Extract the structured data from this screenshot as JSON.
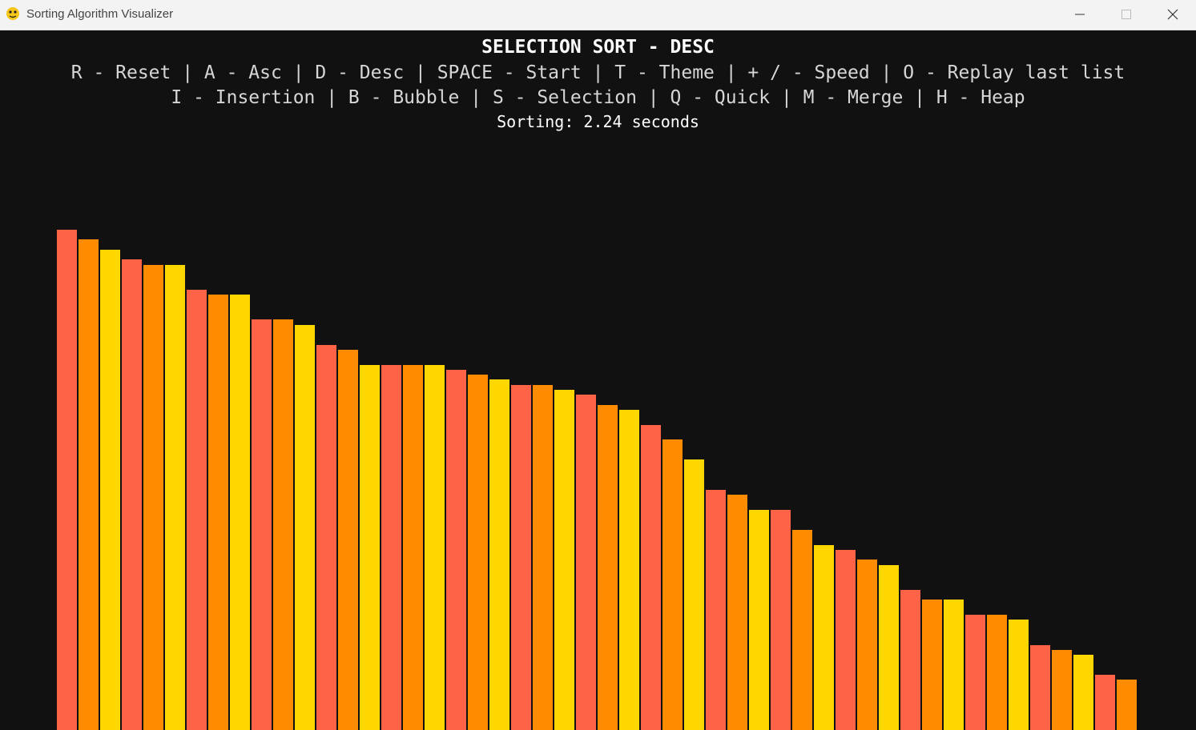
{
  "window": {
    "title": "Sorting Algorithm Visualizer",
    "icon": "python-snake-icon",
    "controls": [
      "minimize-icon",
      "maximize-icon",
      "close-icon"
    ]
  },
  "header": {
    "title": "SELECTION SORT - DESC",
    "help_line_1": "R - Reset | A - Asc | D - Desc | SPACE - Start | T - Theme | + / - Speed | O - Replay last list",
    "help_line_2": "I - Insertion | B - Bubble | S - Selection | Q - Quick | M - Merge | H - Heap",
    "timer": "Sorting: 2.24 seconds"
  },
  "colors": {
    "background": "#111111",
    "palette": [
      "#ff6347",
      "#ff8c00",
      "#ffd700"
    ]
  },
  "chart_data": {
    "type": "bar",
    "max_value": 100,
    "values": [
      100,
      98,
      96,
      94,
      93,
      93,
      88,
      87,
      87,
      82,
      82,
      81,
      77,
      76,
      73,
      73,
      73,
      73,
      72,
      71,
      70,
      69,
      69,
      68,
      67,
      65,
      64,
      61,
      58,
      54,
      48,
      47,
      44,
      44,
      40,
      37,
      36,
      34,
      33,
      28,
      26,
      26,
      23,
      23,
      22,
      17,
      16,
      15,
      11,
      10
    ]
  }
}
